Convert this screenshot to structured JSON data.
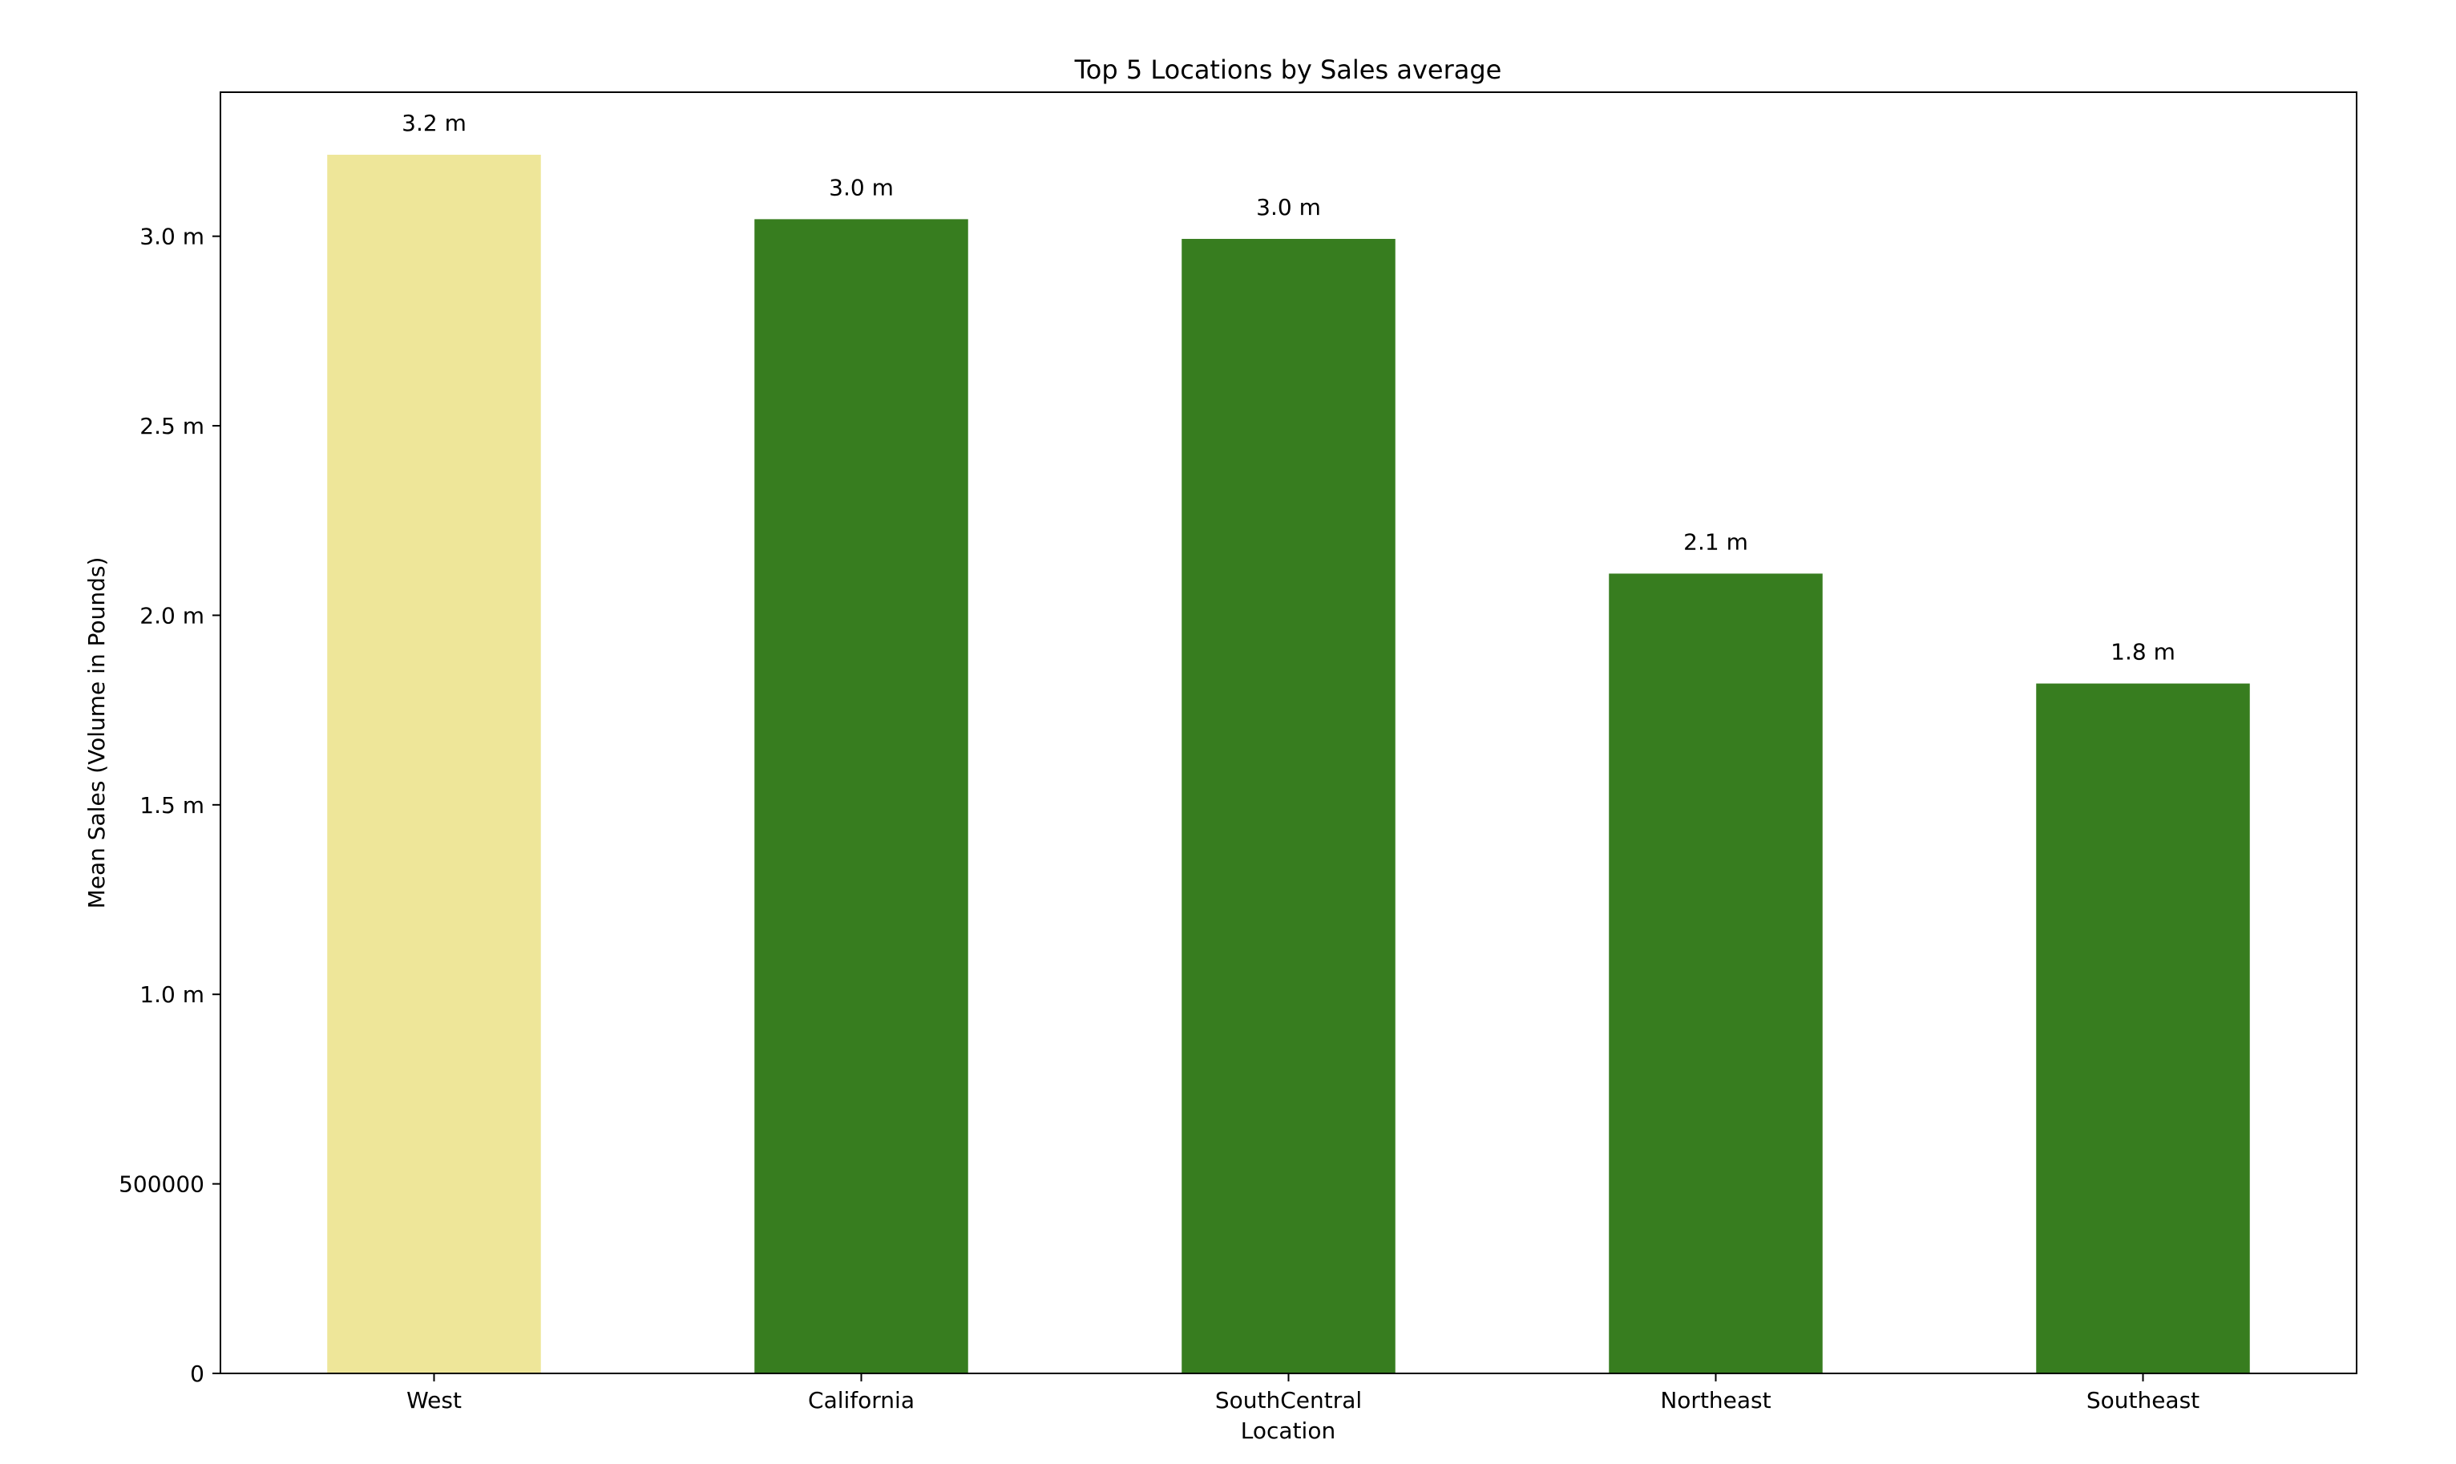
{
  "chart_data": {
    "type": "bar",
    "title": "Top 5 Locations by Sales average",
    "xlabel": "Location",
    "ylabel": "Mean Sales (Volume in Pounds)",
    "categories": [
      "West",
      "California",
      "SouthCentral",
      "Northeast",
      "Southeast"
    ],
    "values": [
      3215000,
      3045000,
      2993000,
      2110000,
      1820000
    ],
    "data_labels": [
      "3.2 m",
      "3.0 m",
      "3.0 m",
      "2.1 m",
      "1.8 m"
    ],
    "bar_colors": [
      "#eee699",
      "#377d1f",
      "#377d1f",
      "#377d1f",
      "#377d1f"
    ],
    "ylim": [
      0,
      3380000
    ],
    "y_ticks": [
      {
        "value": 0,
        "label": "0"
      },
      {
        "value": 500000,
        "label": "500000"
      },
      {
        "value": 1000000,
        "label": "1.0 m"
      },
      {
        "value": 1500000,
        "label": "1.5 m"
      },
      {
        "value": 2000000,
        "label": "2.0 m"
      },
      {
        "value": 2500000,
        "label": "2.5 m"
      },
      {
        "value": 3000000,
        "label": "3.0 m"
      }
    ],
    "grid": false,
    "legend": "none"
  }
}
